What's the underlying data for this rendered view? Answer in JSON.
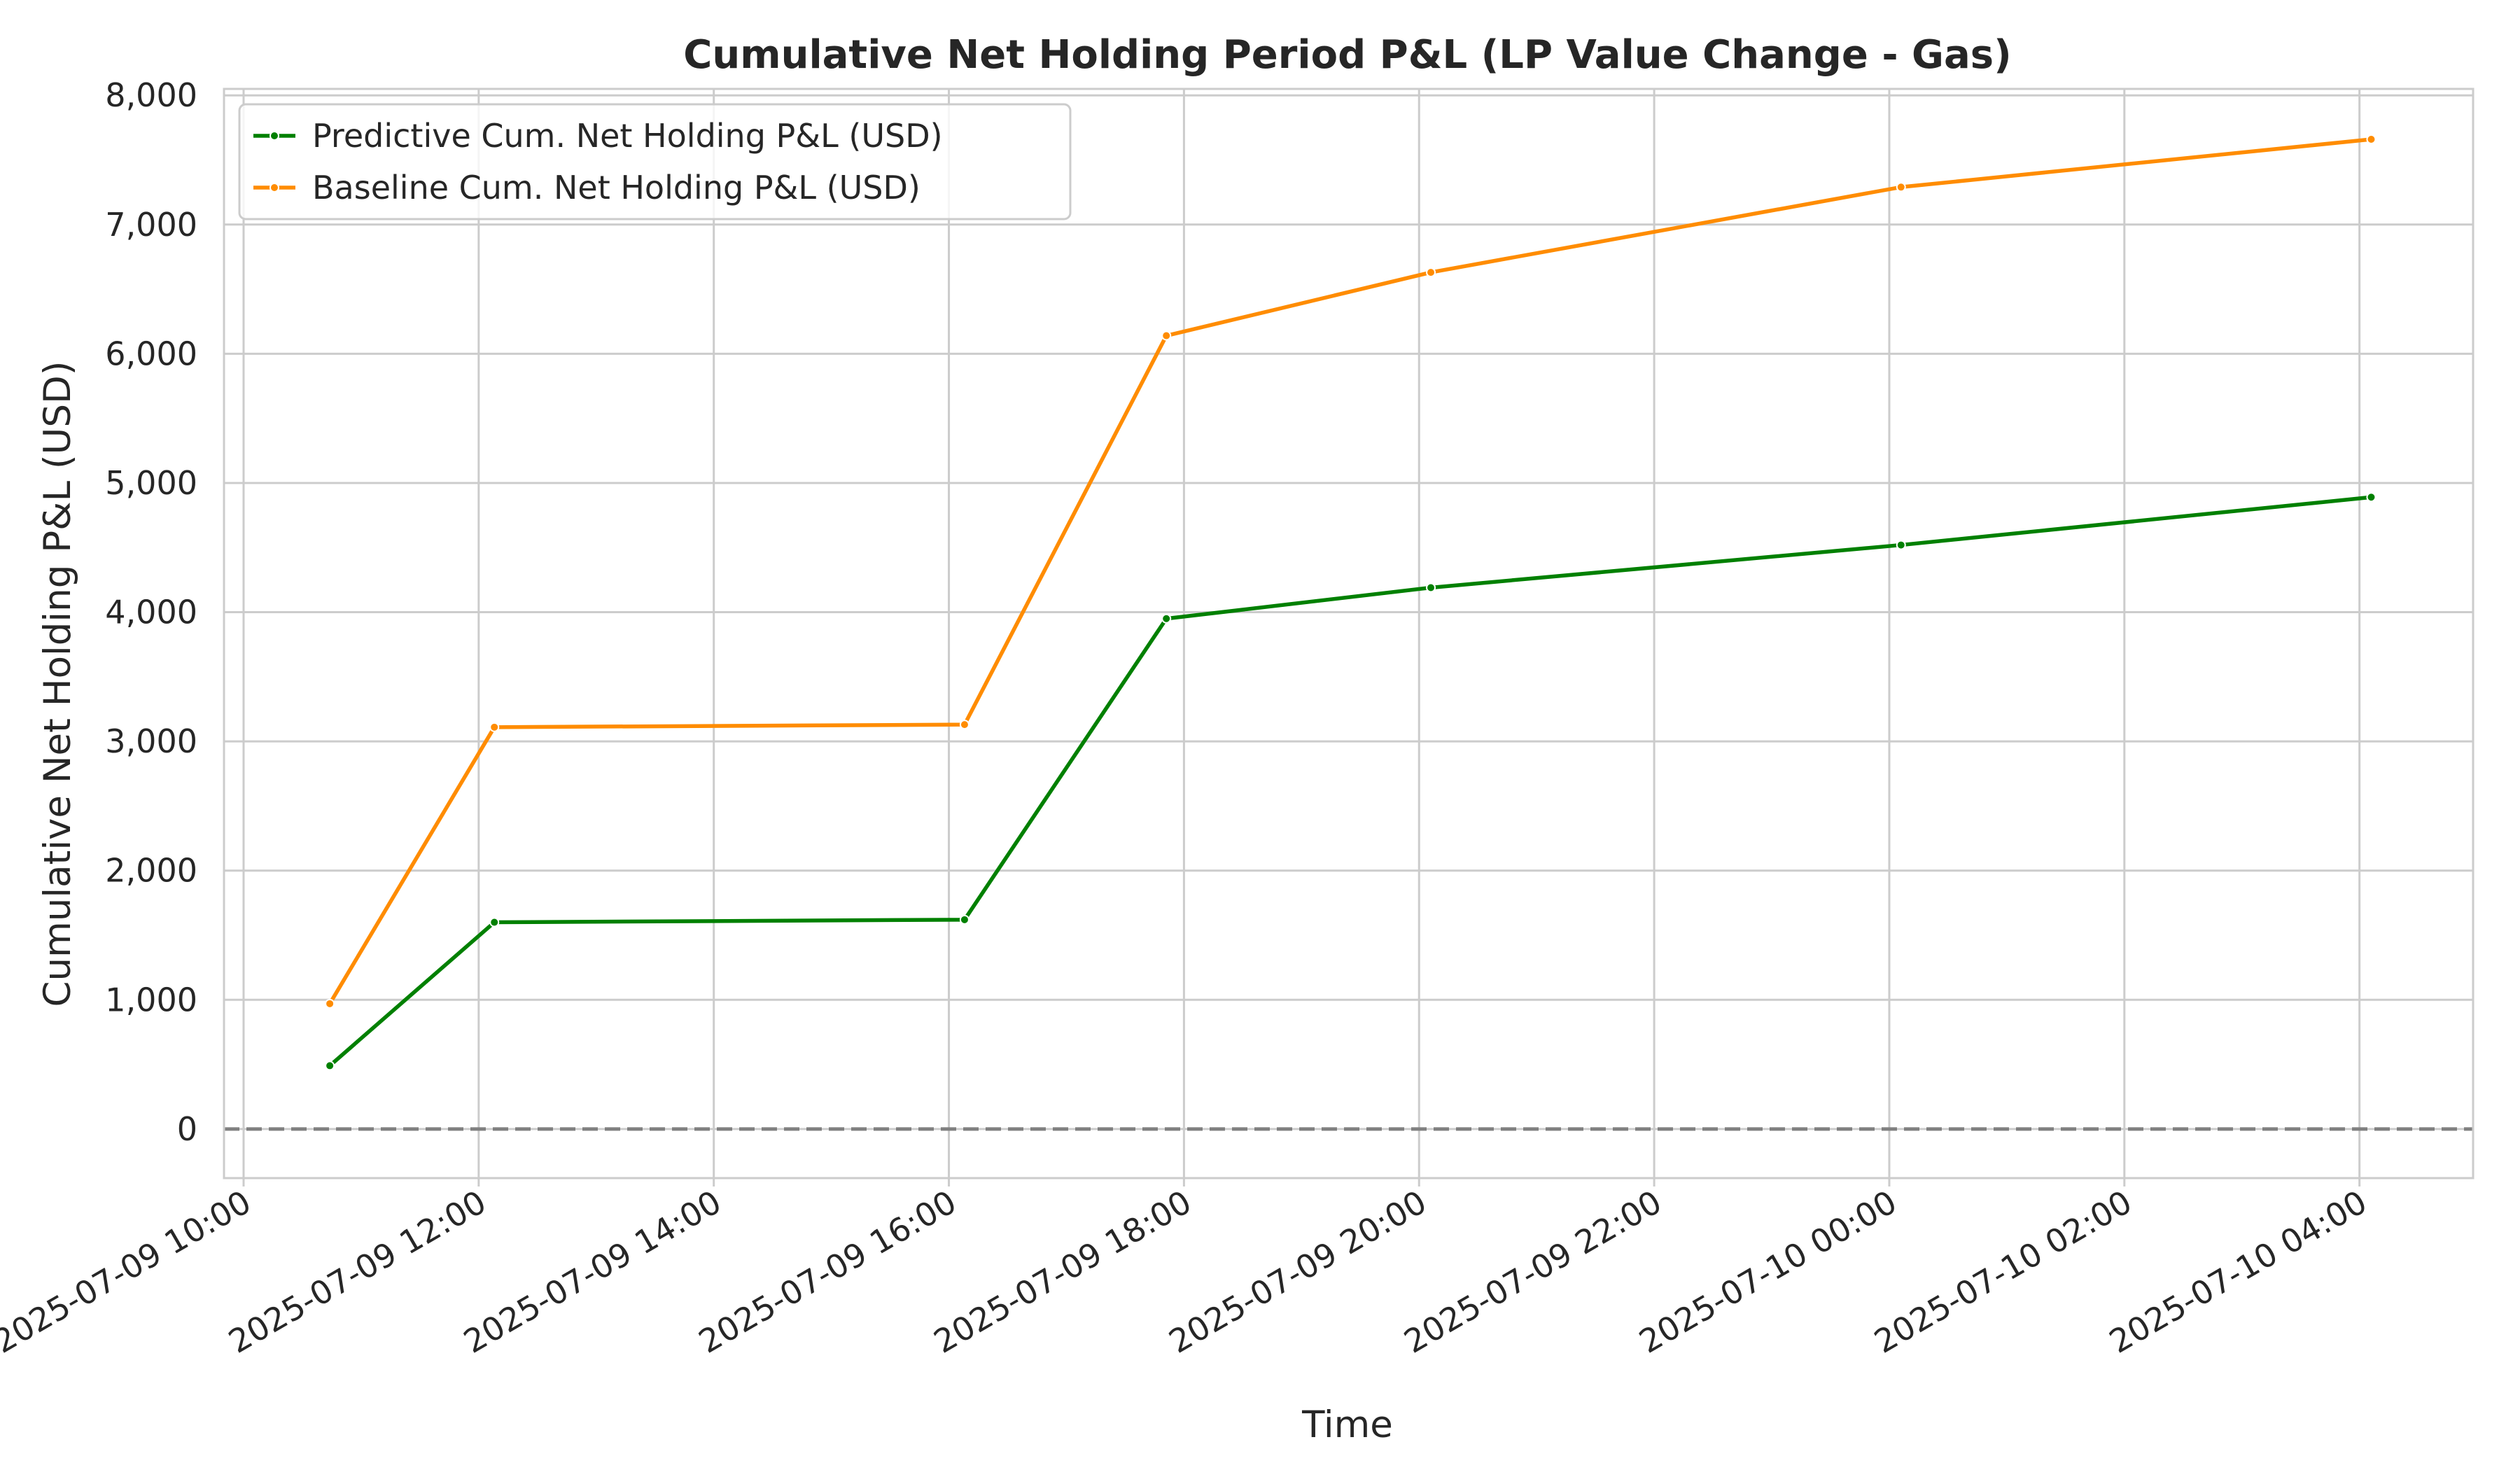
{
  "chart_data": {
    "type": "line",
    "title": "Cumulative Net Holding Period P&L (LP Value Change - Gas)",
    "xlabel": "Time",
    "ylabel": "Cumulative Net Holding P&L (USD)",
    "x_tick_labels": [
      "2025-07-09 10:00",
      "2025-07-09 12:00",
      "2025-07-09 14:00",
      "2025-07-09 16:00",
      "2025-07-09 18:00",
      "2025-07-09 20:00",
      "2025-07-09 22:00",
      "2025-07-10 00:00",
      "2025-07-10 02:00",
      "2025-07-10 04:00"
    ],
    "y_tick_labels": [
      "0",
      "1,000",
      "2,000",
      "3,000",
      "4,000",
      "5,000",
      "6,000",
      "7,000",
      "8,000"
    ],
    "xlim": [
      "2025-07-09 09:50",
      "2025-07-10 04:58"
    ],
    "ylim": [
      -380,
      8050
    ],
    "grid": true,
    "legend_position": "top-left",
    "reference_line": {
      "y": 0,
      "style": "dashed",
      "color": "#808080"
    },
    "x": [
      "2025-07-09 10:44",
      "2025-07-09 12:08",
      "2025-07-09 16:08",
      "2025-07-09 17:51",
      "2025-07-09 20:06",
      "2025-07-10 00:06",
      "2025-07-10 04:06"
    ],
    "series": [
      {
        "name": "Predictive Cum. Net Holding P&L (USD)",
        "color": "#008000",
        "values": [
          490,
          1600,
          1620,
          3950,
          4190,
          4520,
          4890
        ]
      },
      {
        "name": "Baseline Cum. Net Holding P&L (USD)",
        "color": "#ff8c00",
        "values": [
          970,
          3110,
          3130,
          6140,
          6630,
          7290,
          7660
        ]
      }
    ]
  }
}
